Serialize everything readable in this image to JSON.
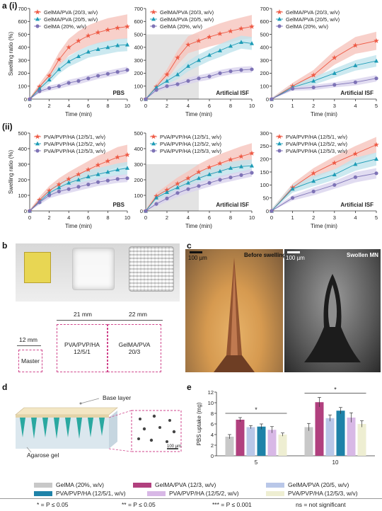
{
  "panel_labels": {
    "a": "a",
    "row1": "(i)",
    "row2": "(ii)",
    "b": "b",
    "c": "c",
    "d": "d",
    "e": "e"
  },
  "colors": {
    "red": "#ee5a45",
    "blue": "#1e9cb6",
    "purple": "#7e73b6",
    "red_band": "#f6c4bd",
    "blue_band": "#bfe3ec",
    "purple_band": "#d9d3ee",
    "grey_box": "#e3e3e3",
    "dash_pink": "#d0468c"
  },
  "chart_data": [
    {
      "id": "a1",
      "type": "line",
      "ylabel": "Swelling ratio (%)",
      "xlabel": "Time (min)",
      "xlim": [
        0,
        10
      ],
      "ylim": [
        0,
        700
      ],
      "xticks": [
        0,
        2,
        4,
        6,
        8,
        10
      ],
      "yticks": [
        0,
        100,
        200,
        300,
        400,
        500,
        600,
        700
      ],
      "annotation": "PBS",
      "highlight": null,
      "series": [
        {
          "name": "GelMA/PVA (20/3, w/v)",
          "marker": "star",
          "color": "red",
          "x": [
            0,
            1,
            2,
            3,
            4,
            5,
            6,
            7,
            8,
            9,
            10
          ],
          "y": [
            0,
            95,
            180,
            305,
            400,
            450,
            490,
            515,
            535,
            550,
            560
          ],
          "band": [
            10,
            25,
            40,
            55,
            65,
            75,
            80,
            85,
            90,
            90,
            95
          ]
        },
        {
          "name": "GelMA/PVA (20/5, w/v)",
          "marker": "triangle",
          "color": "blue",
          "x": [
            0,
            1,
            2,
            3,
            4,
            5,
            6,
            7,
            8,
            9,
            10
          ],
          "y": [
            0,
            80,
            150,
            230,
            290,
            330,
            365,
            385,
            400,
            415,
            420
          ],
          "band": [
            10,
            20,
            30,
            35,
            40,
            45,
            45,
            50,
            50,
            50,
            50
          ]
        },
        {
          "name": "GelMA (20%, w/v)",
          "marker": "circle",
          "color": "purple",
          "x": [
            0,
            1,
            2,
            3,
            4,
            5,
            6,
            7,
            8,
            9,
            10
          ],
          "y": [
            0,
            60,
            85,
            100,
            125,
            140,
            160,
            180,
            195,
            210,
            225
          ],
          "band": [
            8,
            15,
            20,
            20,
            25,
            25,
            25,
            25,
            25,
            25,
            25
          ]
        }
      ]
    },
    {
      "id": "a2",
      "type": "line",
      "ylabel": "",
      "xlabel": "Time (min)",
      "xlim": [
        0,
        10
      ],
      "ylim": [
        0,
        700
      ],
      "xticks": [
        0,
        2,
        4,
        6,
        8,
        10
      ],
      "yticks": [
        0,
        100,
        200,
        300,
        400,
        500,
        600,
        700
      ],
      "annotation": "Artificial ISF",
      "highlight": [
        0,
        5,
        0,
        500
      ],
      "series": [
        {
          "name": "GelMA/PVA (20/3, w/v)",
          "marker": "star",
          "color": "red",
          "x": [
            0,
            1,
            2,
            3,
            4,
            5,
            6,
            7,
            8,
            9,
            10
          ],
          "y": [
            0,
            95,
            190,
            320,
            420,
            450,
            480,
            505,
            525,
            545,
            560
          ],
          "band": [
            10,
            25,
            40,
            55,
            65,
            70,
            75,
            80,
            85,
            85,
            90
          ]
        },
        {
          "name": "GelMA/PVA (20/5, w/v)",
          "marker": "triangle",
          "color": "blue",
          "x": [
            0,
            1,
            2,
            3,
            4,
            5,
            6,
            7,
            8,
            9,
            10
          ],
          "y": [
            0,
            90,
            140,
            190,
            255,
            300,
            340,
            375,
            410,
            440,
            430
          ],
          "band": [
            10,
            20,
            25,
            35,
            40,
            45,
            45,
            50,
            50,
            50,
            50
          ]
        },
        {
          "name": "GelMA (20%, w/v)",
          "marker": "circle",
          "color": "purple",
          "x": [
            0,
            1,
            2,
            3,
            4,
            5,
            6,
            7,
            8,
            9,
            10
          ],
          "y": [
            0,
            70,
            100,
            115,
            140,
            160,
            175,
            200,
            215,
            225,
            230
          ],
          "band": [
            8,
            15,
            20,
            20,
            25,
            25,
            25,
            25,
            25,
            25,
            25
          ]
        }
      ]
    },
    {
      "id": "a3",
      "type": "line",
      "ylabel": "",
      "xlabel": "Time (min)",
      "xlim": [
        0,
        5
      ],
      "ylim": [
        0,
        700
      ],
      "xticks": [
        0,
        1,
        2,
        3,
        4,
        5
      ],
      "yticks": [
        0,
        100,
        200,
        300,
        400,
        500,
        600,
        700
      ],
      "annotation": "Artificial ISF",
      "highlight": null,
      "series": [
        {
          "name": "GelMA/PVA (20/3, w/v)",
          "marker": "star",
          "color": "red",
          "x": [
            0,
            1,
            2,
            3,
            4,
            5
          ],
          "y": [
            0,
            100,
            185,
            320,
            415,
            450
          ],
          "band": [
            10,
            25,
            40,
            55,
            65,
            70
          ]
        },
        {
          "name": "GelMA/PVA (20/5, w/v)",
          "marker": "triangle",
          "color": "blue",
          "x": [
            0,
            1,
            2,
            3,
            4,
            5
          ],
          "y": [
            0,
            90,
            140,
            200,
            260,
            295
          ],
          "band": [
            10,
            20,
            30,
            35,
            40,
            45
          ]
        },
        {
          "name": "GelMA (20%, w/v)",
          "marker": "circle",
          "color": "purple",
          "x": [
            0,
            1,
            2,
            3,
            4,
            5
          ],
          "y": [
            0,
            80,
            90,
            110,
            130,
            160
          ],
          "band": [
            8,
            15,
            20,
            20,
            25,
            25
          ]
        }
      ]
    },
    {
      "id": "a4",
      "type": "line",
      "ylabel": "Swelling ratio (%)",
      "xlabel": "Time (min)",
      "xlim": [
        0,
        10
      ],
      "ylim": [
        0,
        500
      ],
      "xticks": [
        0,
        2,
        4,
        6,
        8,
        10
      ],
      "yticks": [
        0,
        100,
        200,
        300,
        400,
        500
      ],
      "annotation": "PBS",
      "highlight": null,
      "series": [
        {
          "name": "PVA/PVP/HA (12/5/1, w/v)",
          "marker": "star",
          "color": "red",
          "x": [
            0,
            1,
            2,
            3,
            4,
            5,
            6,
            7,
            8,
            9,
            10
          ],
          "y": [
            0,
            70,
            130,
            170,
            205,
            235,
            265,
            295,
            320,
            345,
            360
          ],
          "band": [
            8,
            20,
            30,
            40,
            45,
            50,
            55,
            60,
            60,
            65,
            65
          ]
        },
        {
          "name": "PVA/PVP/HA (12/5/2, w/v)",
          "marker": "triangle",
          "color": "blue",
          "x": [
            0,
            1,
            2,
            3,
            4,
            5,
            6,
            7,
            8,
            9,
            10
          ],
          "y": [
            0,
            60,
            115,
            150,
            180,
            200,
            220,
            235,
            250,
            265,
            275
          ],
          "band": [
            8,
            15,
            25,
            30,
            35,
            35,
            40,
            40,
            40,
            40,
            40
          ]
        },
        {
          "name": "PVA/PVP/HA (12/5/3, w/v)",
          "marker": "circle",
          "color": "purple",
          "x": [
            0,
            1,
            2,
            3,
            4,
            5,
            6,
            7,
            8,
            9,
            10
          ],
          "y": [
            0,
            55,
            100,
            125,
            140,
            155,
            170,
            185,
            195,
            205,
            210
          ],
          "band": [
            8,
            15,
            20,
            25,
            25,
            25,
            25,
            25,
            25,
            25,
            25
          ]
        }
      ]
    },
    {
      "id": "a5",
      "type": "line",
      "ylabel": "",
      "xlabel": "Time (min)",
      "xlim": [
        0,
        10
      ],
      "ylim": [
        0,
        500
      ],
      "xticks": [
        0,
        2,
        4,
        6,
        8,
        10
      ],
      "yticks": [
        0,
        100,
        200,
        300,
        400,
        500
      ],
      "annotation": "Artificial ISF",
      "highlight": [
        0,
        5,
        0,
        300
      ],
      "series": [
        {
          "name": "PVA/PVP/HA (12/5/1, w/v)",
          "marker": "star",
          "color": "red",
          "x": [
            0,
            1,
            2,
            3,
            4,
            5,
            6,
            7,
            8,
            9,
            10
          ],
          "y": [
            0,
            95,
            135,
            175,
            210,
            250,
            280,
            305,
            330,
            350,
            370
          ],
          "band": [
            8,
            20,
            30,
            40,
            45,
            50,
            55,
            60,
            60,
            65,
            65
          ]
        },
        {
          "name": "PVA/PVP/HA (12/5/2, w/v)",
          "marker": "triangle",
          "color": "blue",
          "x": [
            0,
            1,
            2,
            3,
            4,
            5,
            6,
            7,
            8,
            9,
            10
          ],
          "y": [
            0,
            85,
            120,
            150,
            180,
            210,
            235,
            255,
            275,
            285,
            290
          ],
          "band": [
            8,
            15,
            25,
            30,
            35,
            35,
            40,
            40,
            40,
            40,
            40
          ]
        },
        {
          "name": "PVA/PVP/HA (12/5/3, w/v)",
          "marker": "circle",
          "color": "purple",
          "x": [
            0,
            1,
            2,
            3,
            4,
            5,
            6,
            7,
            8,
            9,
            10
          ],
          "y": [
            0,
            45,
            80,
            115,
            140,
            160,
            180,
            200,
            215,
            230,
            245
          ],
          "band": [
            8,
            15,
            20,
            25,
            25,
            25,
            25,
            25,
            25,
            25,
            25
          ]
        }
      ]
    },
    {
      "id": "a6",
      "type": "line",
      "ylabel": "",
      "xlabel": "Time (min)",
      "xlim": [
        0,
        5
      ],
      "ylim": [
        0,
        300
      ],
      "xticks": [
        0,
        1,
        2,
        3,
        4,
        5
      ],
      "yticks": [
        0,
        50,
        100,
        150,
        200,
        250,
        300
      ],
      "annotation": "Artificial ISF",
      "highlight": null,
      "series": [
        {
          "name": "PVA/PVP/HA (12/5/1, w/v)",
          "marker": "star",
          "color": "red",
          "x": [
            0,
            1,
            2,
            3,
            4,
            5
          ],
          "y": [
            0,
            90,
            145,
            185,
            220,
            255
          ],
          "band": [
            8,
            15,
            20,
            25,
            30,
            30
          ]
        },
        {
          "name": "PVA/PVP/HA (12/5/2, w/v)",
          "marker": "triangle",
          "color": "blue",
          "x": [
            0,
            1,
            2,
            3,
            4,
            5
          ],
          "y": [
            0,
            85,
            115,
            140,
            180,
            200
          ],
          "band": [
            8,
            15,
            20,
            20,
            25,
            25
          ]
        },
        {
          "name": "PVA/PVP/HA (12/5/3, w/v)",
          "marker": "circle",
          "color": "purple",
          "x": [
            0,
            1,
            2,
            3,
            4,
            5
          ],
          "y": [
            0,
            50,
            75,
            100,
            130,
            145
          ],
          "band": [
            6,
            10,
            15,
            15,
            20,
            20
          ]
        }
      ]
    },
    {
      "id": "e",
      "type": "bar",
      "ylabel": "PBS uptake (mg)",
      "xlabel": "",
      "categories": [
        "5",
        "10"
      ],
      "ylim": [
        0,
        12
      ],
      "yticks": [
        0,
        2,
        4,
        6,
        8,
        10,
        12
      ],
      "series": [
        {
          "name": "GelMA (20%, w/v)",
          "color": "#c8c8c8",
          "values": [
            3.6,
            5.4
          ],
          "err": [
            0.4,
            0.7
          ]
        },
        {
          "name": "GelMA/PVA (12/3, w/v)",
          "color": "#b1407e",
          "values": [
            6.8,
            10.1
          ],
          "err": [
            0.4,
            0.9
          ]
        },
        {
          "name": "GelMA/PVA (20/5, w/v)",
          "color": "#b9c7e8",
          "values": [
            5.4,
            7.1
          ],
          "err": [
            0.3,
            0.6
          ]
        },
        {
          "name": "PVA/PVP/HA (12/5/1, w/v)",
          "color": "#1e82a8",
          "values": [
            5.5,
            8.5
          ],
          "err": [
            0.5,
            0.6
          ]
        },
        {
          "name": "PVA/PVP/HA (12/5/2, w/v)",
          "color": "#d8b8e6",
          "values": [
            4.9,
            7.2
          ],
          "err": [
            0.6,
            0.9
          ]
        },
        {
          "name": "PVA/PVP/HA (12/5/3, w/v)",
          "color": "#eeeed2",
          "values": [
            4.0,
            6.0
          ],
          "err": [
            0.3,
            0.6
          ]
        }
      ],
      "significance": [
        {
          "group": "5",
          "label": "*"
        },
        {
          "group": "10",
          "label": "*"
        }
      ]
    }
  ],
  "panel_b": {
    "dim_21": "21 mm",
    "dim_22": "22 mm",
    "dim_12": "12 mm",
    "box1": "Master",
    "box2_l1": "PVA/PVP/HA",
    "box2_l2": "12/5/1",
    "box3_l1": "GelMA/PVA",
    "box3_l2": "20/3"
  },
  "panel_c": {
    "left_title": "Before swelling",
    "right_title": "Swollen MN",
    "scale_left": "100 µm",
    "scale_right": "100 µm"
  },
  "panel_d": {
    "base_label": "Base layer",
    "gel_label": "Agarose gel",
    "scale": "100 µm"
  },
  "footnote": {
    "p1": "* = P ≤ 0.05",
    "p2": "** = P ≤ 0.05",
    "p3": "*** = P ≤ 0.001",
    "ns": "ns = not significant"
  }
}
